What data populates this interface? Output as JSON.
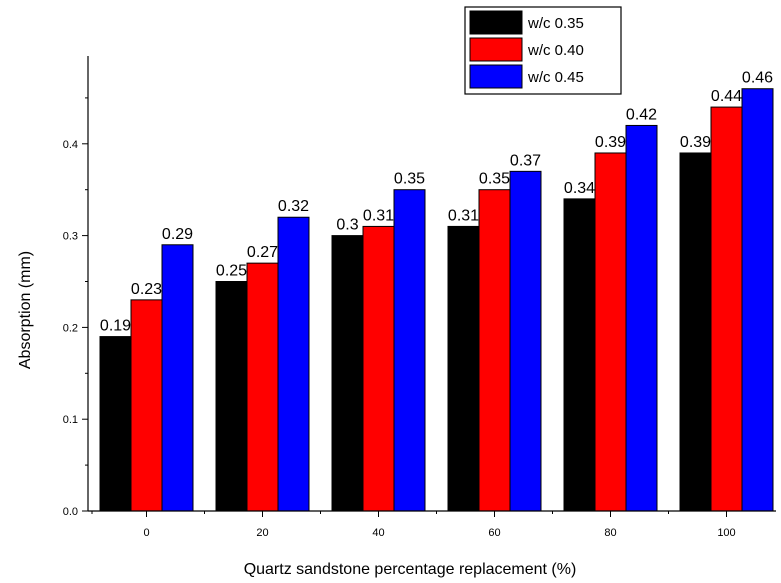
{
  "chart_data": {
    "type": "bar",
    "title": "",
    "xlabel": "Quartz sandstone percentage replacement (%)",
    "ylabel": "Absorption (mm)",
    "categories": [
      "0",
      "20",
      "40",
      "60",
      "80",
      "100"
    ],
    "series": [
      {
        "name": "w/c 0.35",
        "color": "#000000",
        "values": [
          0.19,
          0.25,
          0.3,
          0.31,
          0.34,
          0.39
        ],
        "labels": [
          "0.19",
          "0.25",
          "0.3",
          "0.31",
          "0.34",
          "0.39"
        ]
      },
      {
        "name": "w/c 0.40",
        "color": "#ff0000",
        "values": [
          0.23,
          0.27,
          0.31,
          0.35,
          0.39,
          0.44
        ],
        "labels": [
          "0.23",
          "0.27",
          "0.31",
          "0.35",
          "0.39",
          "0.44"
        ]
      },
      {
        "name": "w/c 0.45",
        "color": "#0000ff",
        "values": [
          0.29,
          0.32,
          0.35,
          0.37,
          0.42,
          0.46
        ],
        "labels": [
          "0.29",
          "0.32",
          "0.35",
          "0.37",
          "0.42",
          "0.46"
        ]
      }
    ],
    "yticks": [
      "0.0",
      "0.1",
      "0.2",
      "0.3",
      "0.4"
    ],
    "ylim": [
      0,
      0.5
    ],
    "grid": false,
    "legend_position": "top-right"
  }
}
